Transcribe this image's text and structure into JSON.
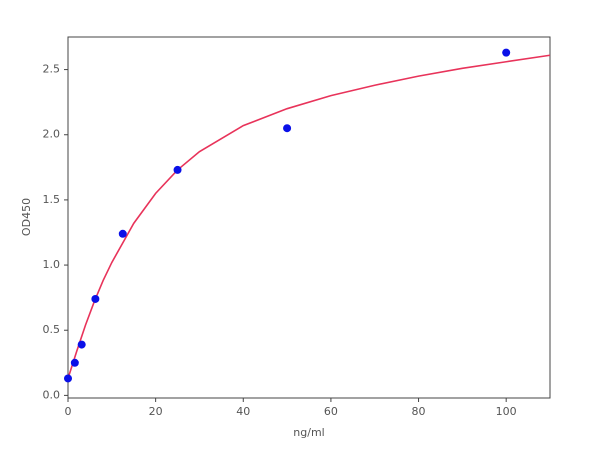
{
  "chart_data": {
    "type": "scatter",
    "x_label": "ng/ml",
    "y_label": "OD450",
    "x": [
      0,
      1.56,
      3.125,
      6.25,
      12.5,
      25,
      50,
      100
    ],
    "values": [
      0.13,
      0.25,
      0.39,
      0.74,
      1.24,
      1.73,
      2.05,
      2.63
    ],
    "color": "#0a10e8",
    "fit": {
      "color": "#e8335a",
      "x": [
        0,
        2,
        4,
        6,
        8,
        10,
        15,
        20,
        25,
        30,
        40,
        50,
        60,
        70,
        80,
        90,
        100,
        110
      ],
      "values": [
        0.13,
        0.34,
        0.54,
        0.72,
        0.88,
        1.02,
        1.32,
        1.55,
        1.73,
        1.87,
        2.07,
        2.2,
        2.3,
        2.38,
        2.45,
        2.51,
        2.56,
        2.61
      ]
    },
    "xlim": [
      0,
      110
    ],
    "ylim": [
      -0.02,
      2.75
    ],
    "xticks": [
      0,
      20,
      40,
      60,
      80,
      100
    ],
    "yticks": [
      {
        "value": 0,
        "label": "0.0"
      },
      0.5,
      {
        "value": 1,
        "label": "1.0"
      },
      1.5,
      {
        "value": 2,
        "label": "2.0"
      },
      2.5
    ],
    "grid": false
  }
}
